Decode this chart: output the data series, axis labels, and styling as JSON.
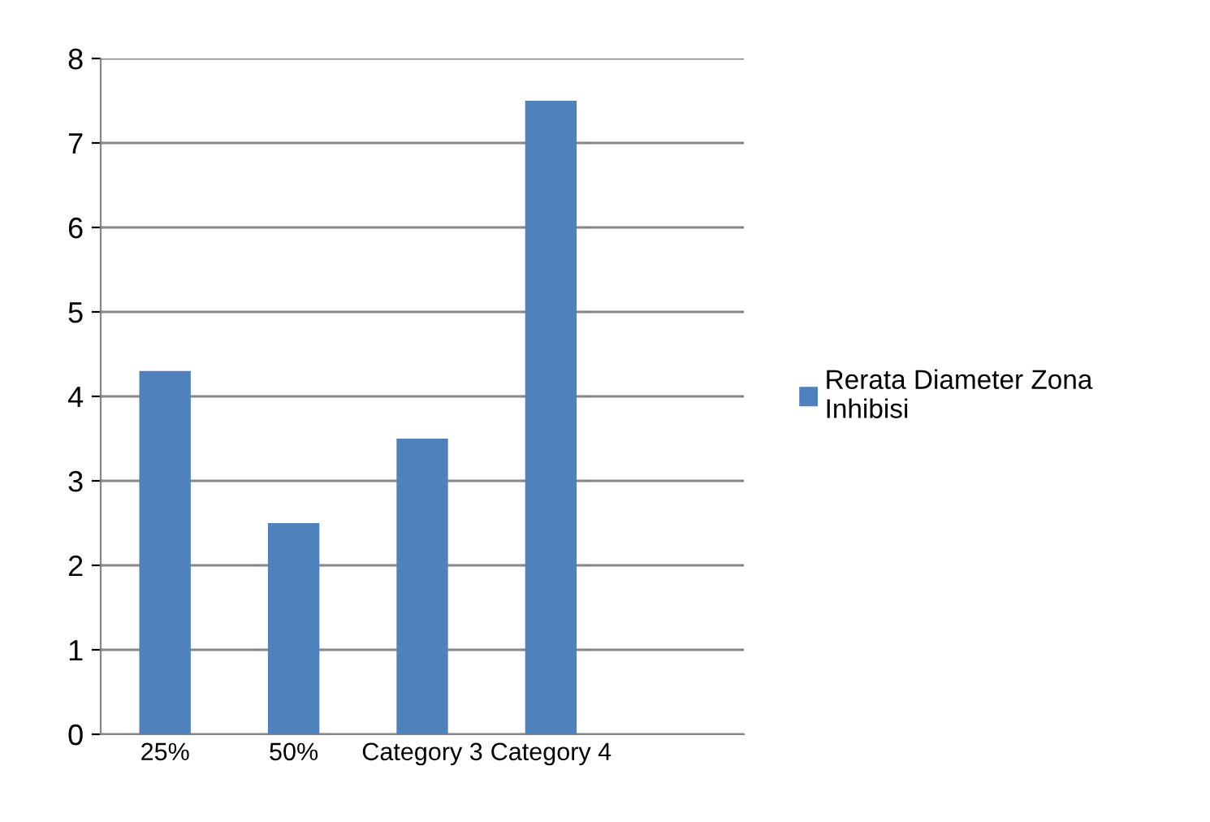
{
  "chart_data": {
    "type": "bar",
    "categories": [
      "25%",
      "50%",
      "Category 3",
      "Category 4",
      null
    ],
    "series": [
      {
        "name": "Rerata Diameter Zona Inhibisi",
        "color": "#4f81bd",
        "values": [
          4.3,
          2.5,
          3.5,
          7.5,
          null
        ]
      }
    ],
    "ylim": [
      0,
      8
    ],
    "yticks": [
      0,
      1,
      2,
      3,
      4,
      5,
      6,
      7,
      8
    ],
    "grid": "y",
    "legend": "right"
  }
}
